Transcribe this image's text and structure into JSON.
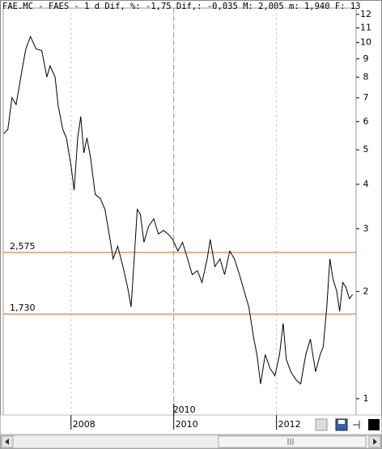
{
  "chart_data": {
    "type": "line",
    "title": "FAE.MC - FAES -  1 d Dif, %: -1,75 Dif,: -0,035 M: 2,005 m: 1,940 F: 13",
    "log_y": true,
    "xlim": [
      2006.68,
      2013.55
    ],
    "ylim": [
      0.9,
      12.5
    ],
    "xticks": [
      2008,
      2010,
      2012
    ],
    "yticks": [
      1,
      2,
      3,
      4,
      5,
      6,
      7,
      8,
      9,
      10,
      11,
      12
    ],
    "crosshair": {
      "x": 2010,
      "label": "2010"
    },
    "hlines": [
      {
        "value": 2.575,
        "label": "2,575",
        "color": "#d2691e"
      },
      {
        "value": 1.73,
        "label": "1,730",
        "color": "#d2691e"
      }
    ],
    "series": [
      {
        "color": "#000000",
        "x": [
          2006.69,
          2006.77,
          2006.85,
          2006.93,
          2007.06,
          2007.12,
          2007.21,
          2007.32,
          2007.43,
          2007.53,
          2007.59,
          2007.69,
          2007.75,
          2007.84,
          2007.91,
          2008.0,
          2008.06,
          2008.13,
          2008.19,
          2008.25,
          2008.31,
          2008.38,
          2008.47,
          2008.57,
          2008.66,
          2008.76,
          2008.82,
          2008.91,
          2009.01,
          2009.1,
          2009.17,
          2009.23,
          2009.29,
          2009.35,
          2009.42,
          2009.51,
          2009.61,
          2009.7,
          2009.8,
          2009.89,
          2009.98,
          2010.08,
          2010.17,
          2010.27,
          2010.36,
          2010.46,
          2010.55,
          2010.65,
          2010.71,
          2010.8,
          2010.9,
          2010.99,
          2011.09,
          2011.18,
          2011.28,
          2011.37,
          2011.46,
          2011.56,
          2011.62,
          2011.69,
          2011.78,
          2011.87,
          2011.97,
          2012.06,
          2012.13,
          2012.19,
          2012.28,
          2012.38,
          2012.47,
          2012.57,
          2012.66,
          2012.76,
          2012.85,
          2012.91,
          2012.98,
          2013.04,
          2013.1,
          2013.17,
          2013.23,
          2013.29,
          2013.35,
          2013.42,
          2013.48
        ],
        "values": [
          5.55,
          5.7,
          7.0,
          6.7,
          8.6,
          9.6,
          10.4,
          9.6,
          9.5,
          8.0,
          8.6,
          8.0,
          6.65,
          5.7,
          5.4,
          4.5,
          3.85,
          5.4,
          6.2,
          4.9,
          5.4,
          4.75,
          3.75,
          3.65,
          3.4,
          2.8,
          2.47,
          2.68,
          2.35,
          2.06,
          1.81,
          2.47,
          3.4,
          3.3,
          2.75,
          3.05,
          3.2,
          2.9,
          2.97,
          2.9,
          2.8,
          2.6,
          2.75,
          2.47,
          2.23,
          2.29,
          2.12,
          2.47,
          2.8,
          2.35,
          2.47,
          2.23,
          2.6,
          2.47,
          2.23,
          2.01,
          1.81,
          1.47,
          1.33,
          1.1,
          1.33,
          1.22,
          1.16,
          1.33,
          1.63,
          1.29,
          1.19,
          1.13,
          1.1,
          1.33,
          1.47,
          1.19,
          1.33,
          1.4,
          1.81,
          2.47,
          2.17,
          2.01,
          1.76,
          2.12,
          2.06,
          1.91,
          1.96
        ]
      }
    ]
  }
}
